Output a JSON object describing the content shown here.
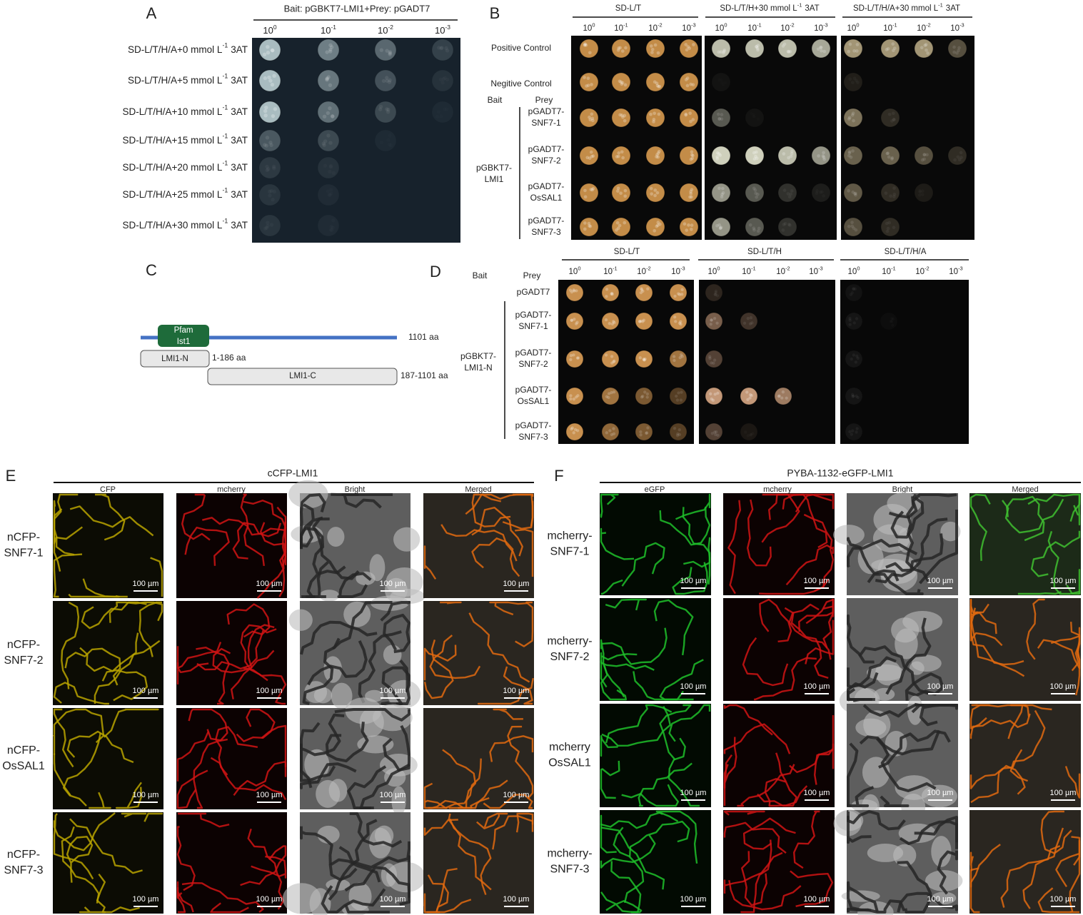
{
  "dilutions": [
    {
      "text": "10",
      "sup": "0"
    },
    {
      "text": "10",
      "sup": "-1"
    },
    {
      "text": "10",
      "sup": "-2"
    },
    {
      "text": "10",
      "sup": "-3"
    }
  ],
  "scale_bar": "100 µm",
  "panel_a": {
    "label": "A",
    "title": "Bait: pGBKT7-LMI1+Prey: pGADT7",
    "rows": [
      {
        "text": "SD-L/T/H/A+0 mmol L",
        "sup": "-1",
        "after": "3AT"
      },
      {
        "text": "SD-L/T/H/A+5 mmol L",
        "sup": "-1",
        "after": "3AT"
      },
      {
        "text": "SD-L/T/H/A+10 mmol L",
        "sup": "-1",
        "after": "3AT"
      },
      {
        "text": "SD-L/T/H/A+15 mmol L",
        "sup": "-1",
        "after": "3AT"
      },
      {
        "text": "SD-L/T/H/A+20 mmol L",
        "sup": "-1",
        "after": "3AT"
      },
      {
        "text": "SD-L/T/H/A+25 mmol L",
        "sup": "-1",
        "after": "3AT"
      },
      {
        "text": "SD-L/T/H/A+30 mmol L",
        "sup": "-1",
        "after": "3AT"
      }
    ]
  },
  "panel_b": {
    "label": "B",
    "media": [
      {
        "text": "SD-L/T"
      },
      {
        "text": "SD-L/T/H+30 mmol L",
        "sup": "-1",
        "after": "3AT"
      },
      {
        "text": "SD-L/T/H/A+30 mmol L",
        "sup": "-1",
        "after": "3AT"
      }
    ],
    "controls": [
      "Positive Control",
      "Negitive Control"
    ],
    "bait_header": "Bait",
    "prey_header": "Prey",
    "bait": [
      "pGBKT7-",
      "LMI1"
    ],
    "preys": [
      [
        "pGADT7-",
        "SNF7-1"
      ],
      [
        "pGADT7-",
        "SNF7-2"
      ],
      [
        "pGADT7-",
        "OsSAL1"
      ],
      [
        "pGADT7-",
        "SNF7-3"
      ]
    ]
  },
  "panel_c": {
    "label": "C",
    "domain": [
      "Pfam",
      "Ist1"
    ],
    "full_length": "1101 aa",
    "n_term": {
      "name": "LMI1-N",
      "range": "1-186 aa"
    },
    "c_term": {
      "name": "LMI1-C",
      "range": "187-1101 aa"
    }
  },
  "panel_d": {
    "label": "D",
    "bait_header": "Bait",
    "prey_header": "Prey",
    "media": [
      "SD-L/T",
      "SD-L/T/H",
      "SD-L/T/H/A"
    ],
    "bait": [
      "pGBKT7-",
      "LMI1-N"
    ],
    "preys": [
      [
        "pGADT7"
      ],
      [
        "pGADT7-",
        "SNF7-1"
      ],
      [
        "pGADT7-",
        "SNF7-2"
      ],
      [
        "pGADT7-",
        "OsSAL1"
      ],
      [
        "pGADT7-",
        "SNF7-3"
      ]
    ]
  },
  "panel_e": {
    "label": "E",
    "title": "cCFP-LMI1",
    "columns": [
      "CFP",
      "mcherry",
      "Bright",
      "Merged"
    ],
    "rows": [
      [
        "nCFP-",
        "SNF7-1"
      ],
      [
        "nCFP-",
        "SNF7-2"
      ],
      [
        "nCFP-",
        "OsSAL1"
      ],
      [
        "nCFP-",
        "SNF7-3"
      ]
    ]
  },
  "panel_f": {
    "label": "F",
    "title": "PYBA-1132-eGFP-LMI1",
    "columns": [
      "eGFP",
      "mcherry",
      "Bright",
      "Merged"
    ],
    "rows": [
      [
        "mcherry-",
        "SNF7-1"
      ],
      [
        "mcherry-",
        "SNF7-2"
      ],
      [
        "mcherry",
        "OsSAL1"
      ],
      [
        "mcherry-",
        "SNF7-3"
      ]
    ]
  }
}
